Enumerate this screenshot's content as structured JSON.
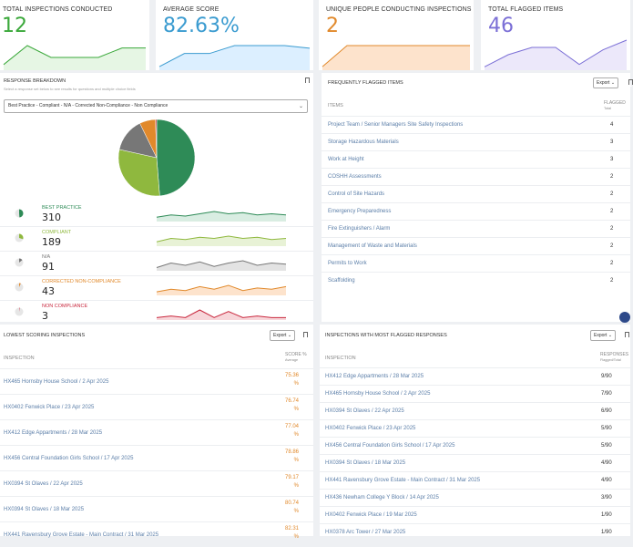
{
  "kpis": [
    {
      "title": "TOTAL INSPECTIONS CONDUCTED",
      "value": "12",
      "color": "#3aa83a",
      "fill": "#e6f6e4",
      "spark": [
        2,
        10,
        5,
        5,
        5,
        9,
        9
      ]
    },
    {
      "title": "AVERAGE SCORE",
      "value": "82.63%",
      "color": "#3a9bd0",
      "fill": "#dcefff",
      "spark": [
        1,
        6,
        6,
        9,
        9,
        9,
        8
      ]
    },
    {
      "title": "UNIQUE PEOPLE CONDUCTING INSPECTIONS",
      "value": "2",
      "color": "#e1892b",
      "fill": "#fde3cc",
      "spark": [
        1,
        9,
        9,
        9,
        9,
        9,
        9
      ]
    },
    {
      "title": "TOTAL FLAGGED ITEMS",
      "value": "46",
      "color": "#7b6fd6",
      "fill": "#ece8fa",
      "spark": [
        1,
        6,
        9,
        9,
        2,
        8,
        12
      ]
    }
  ],
  "breakdown": {
    "title": "RESPONSE BREAKDOWN",
    "subtitle": "Select a response set below to see results for questions and multiple choice fields",
    "select_value": "Best Practice - Compliant - N/A - Corrected Non-Compliance - Non Compliance",
    "items": [
      {
        "label": "BEST PRACTICE",
        "value": "310",
        "num": 310,
        "color": "#2e8b57",
        "fill": "#d9ede2",
        "spark": [
          3,
          5,
          4,
          6,
          8,
          6,
          7,
          5,
          6,
          5
        ]
      },
      {
        "label": "COMPLIANT",
        "value": "189",
        "num": 189,
        "color": "#8fb83e",
        "fill": "#e8f2d6",
        "spark": [
          3,
          6,
          5,
          7,
          6,
          8,
          6,
          7,
          5,
          6
        ]
      },
      {
        "label": "N/A",
        "value": "91",
        "num": 91,
        "color": "#777777",
        "fill": "#e3e3e3",
        "spark": [
          2,
          6,
          4,
          7,
          3,
          6,
          8,
          4,
          6,
          5
        ]
      },
      {
        "label": "CORRECTED NON-COMPLIANCE",
        "value": "43",
        "num": 43,
        "color": "#e1892b",
        "fill": "#fde3cc",
        "spark": [
          2,
          4,
          3,
          6,
          4,
          7,
          3,
          5,
          4,
          6
        ]
      },
      {
        "label": "NON COMPLIANCE",
        "value": "3",
        "num": 3,
        "color": "#c9283e",
        "fill": "#f7d6da",
        "spark": [
          1,
          2,
          1,
          6,
          1,
          5,
          1,
          2,
          1,
          1
        ]
      }
    ]
  },
  "flagged": {
    "title": "FREQUENTLY FLAGGED ITEMS",
    "export_label": "Export",
    "col_items": "ITEMS",
    "col_flagged": "FLAGGED",
    "col_flagged_sub": "Total",
    "rows": [
      {
        "name": "Project Team / Senior Managers Site Safety Inspections",
        "count": "4"
      },
      {
        "name": "Storage Hazardous Materials",
        "count": "3"
      },
      {
        "name": "Work at Height",
        "count": "3"
      },
      {
        "name": "COSHH Assessments",
        "count": "2"
      },
      {
        "name": "Control of Site Hazards",
        "count": "2"
      },
      {
        "name": "Emergency Preparedness",
        "count": "2"
      },
      {
        "name": "Fire Extinguishers / Alarm",
        "count": "2"
      },
      {
        "name": "Management of Waste and Materials",
        "count": "2"
      },
      {
        "name": "Permits to Work",
        "count": "2"
      },
      {
        "name": "Scaffolding",
        "count": "2"
      }
    ]
  },
  "lowest": {
    "title": "LOWEST SCORING INSPECTIONS",
    "export_label": "Export",
    "col_inspection": "INSPECTION",
    "col_score": "SCORE %",
    "col_score_sub": "Average",
    "rows": [
      {
        "name": "HX465 Hornsby House School / 2 Apr 2025",
        "score": "75.36\n%"
      },
      {
        "name": "HX0402 Fenwick Place / 23 Apr 2025",
        "score": "76.74\n%"
      },
      {
        "name": "HX412 Edge Appartments / 28 Mar 2025",
        "score": "77.04\n%"
      },
      {
        "name": "HX456 Central Foundation Girls School / 17 Apr 2025",
        "score": "78.86\n%"
      },
      {
        "name": "HX0394 St Olaves / 22 Apr 2025",
        "score": "79.17\n%"
      },
      {
        "name": "HX0394 St Olaves / 18 Mar 2025",
        "score": "80.74\n%"
      },
      {
        "name": "HX441 Ravensbury Grove Estate - Main Contract / 31 Mar 2025",
        "score": "82.31\n%"
      }
    ]
  },
  "most_flagged": {
    "title": "INSPECTIONS WITH MOST FLAGGED RESPONSES",
    "export_label": "Export",
    "col_inspection": "INSPECTION",
    "col_responses": "RESPONSES",
    "col_responses_sub": "Flagged/Total",
    "rows": [
      {
        "name": "HX412 Edge Appartments / 28 Mar 2025",
        "count": "9/90"
      },
      {
        "name": "HX465 Hornsby House School / 2 Apr 2025",
        "count": "7/90"
      },
      {
        "name": "HX0394 St Olaves / 22 Apr 2025",
        "count": "6/90"
      },
      {
        "name": "HX0402 Fenwick Place / 23 Apr 2025",
        "count": "5/90"
      },
      {
        "name": "HX456 Central Foundation Girls School / 17 Apr 2025",
        "count": "5/90"
      },
      {
        "name": "HX0394 St Olaves / 18 Mar 2025",
        "count": "4/90"
      },
      {
        "name": "HX441 Ravensbury Grove Estate - Main Contract / 31 Mar 2025",
        "count": "4/90"
      },
      {
        "name": "HX436 Newham College Y Block / 14 Apr 2025",
        "count": "3/90"
      },
      {
        "name": "HX0402 Fenwick Place / 19 Mar 2025",
        "count": "1/90"
      },
      {
        "name": "HX0378 Arc Tower / 27 Mar 2025",
        "count": "1/90"
      }
    ]
  }
}
